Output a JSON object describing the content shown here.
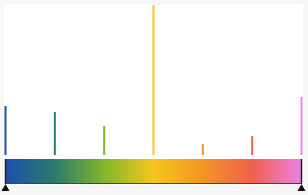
{
  "chart_data": {
    "type": "stem",
    "x": [
      0,
      1,
      2,
      3,
      4,
      5,
      6
    ],
    "values": [
      49,
      43,
      29,
      150,
      11,
      19,
      58
    ],
    "colors": [
      "#1d4fb0",
      "#2b7b6c",
      "#82b62c",
      "#f6c51c",
      "#f39424",
      "#f0604c",
      "#ee80e6"
    ],
    "xlim": [
      0,
      6
    ],
    "xticks": [
      0,
      6
    ],
    "ylim": [
      0,
      150
    ],
    "tick_labels": false
  }
}
